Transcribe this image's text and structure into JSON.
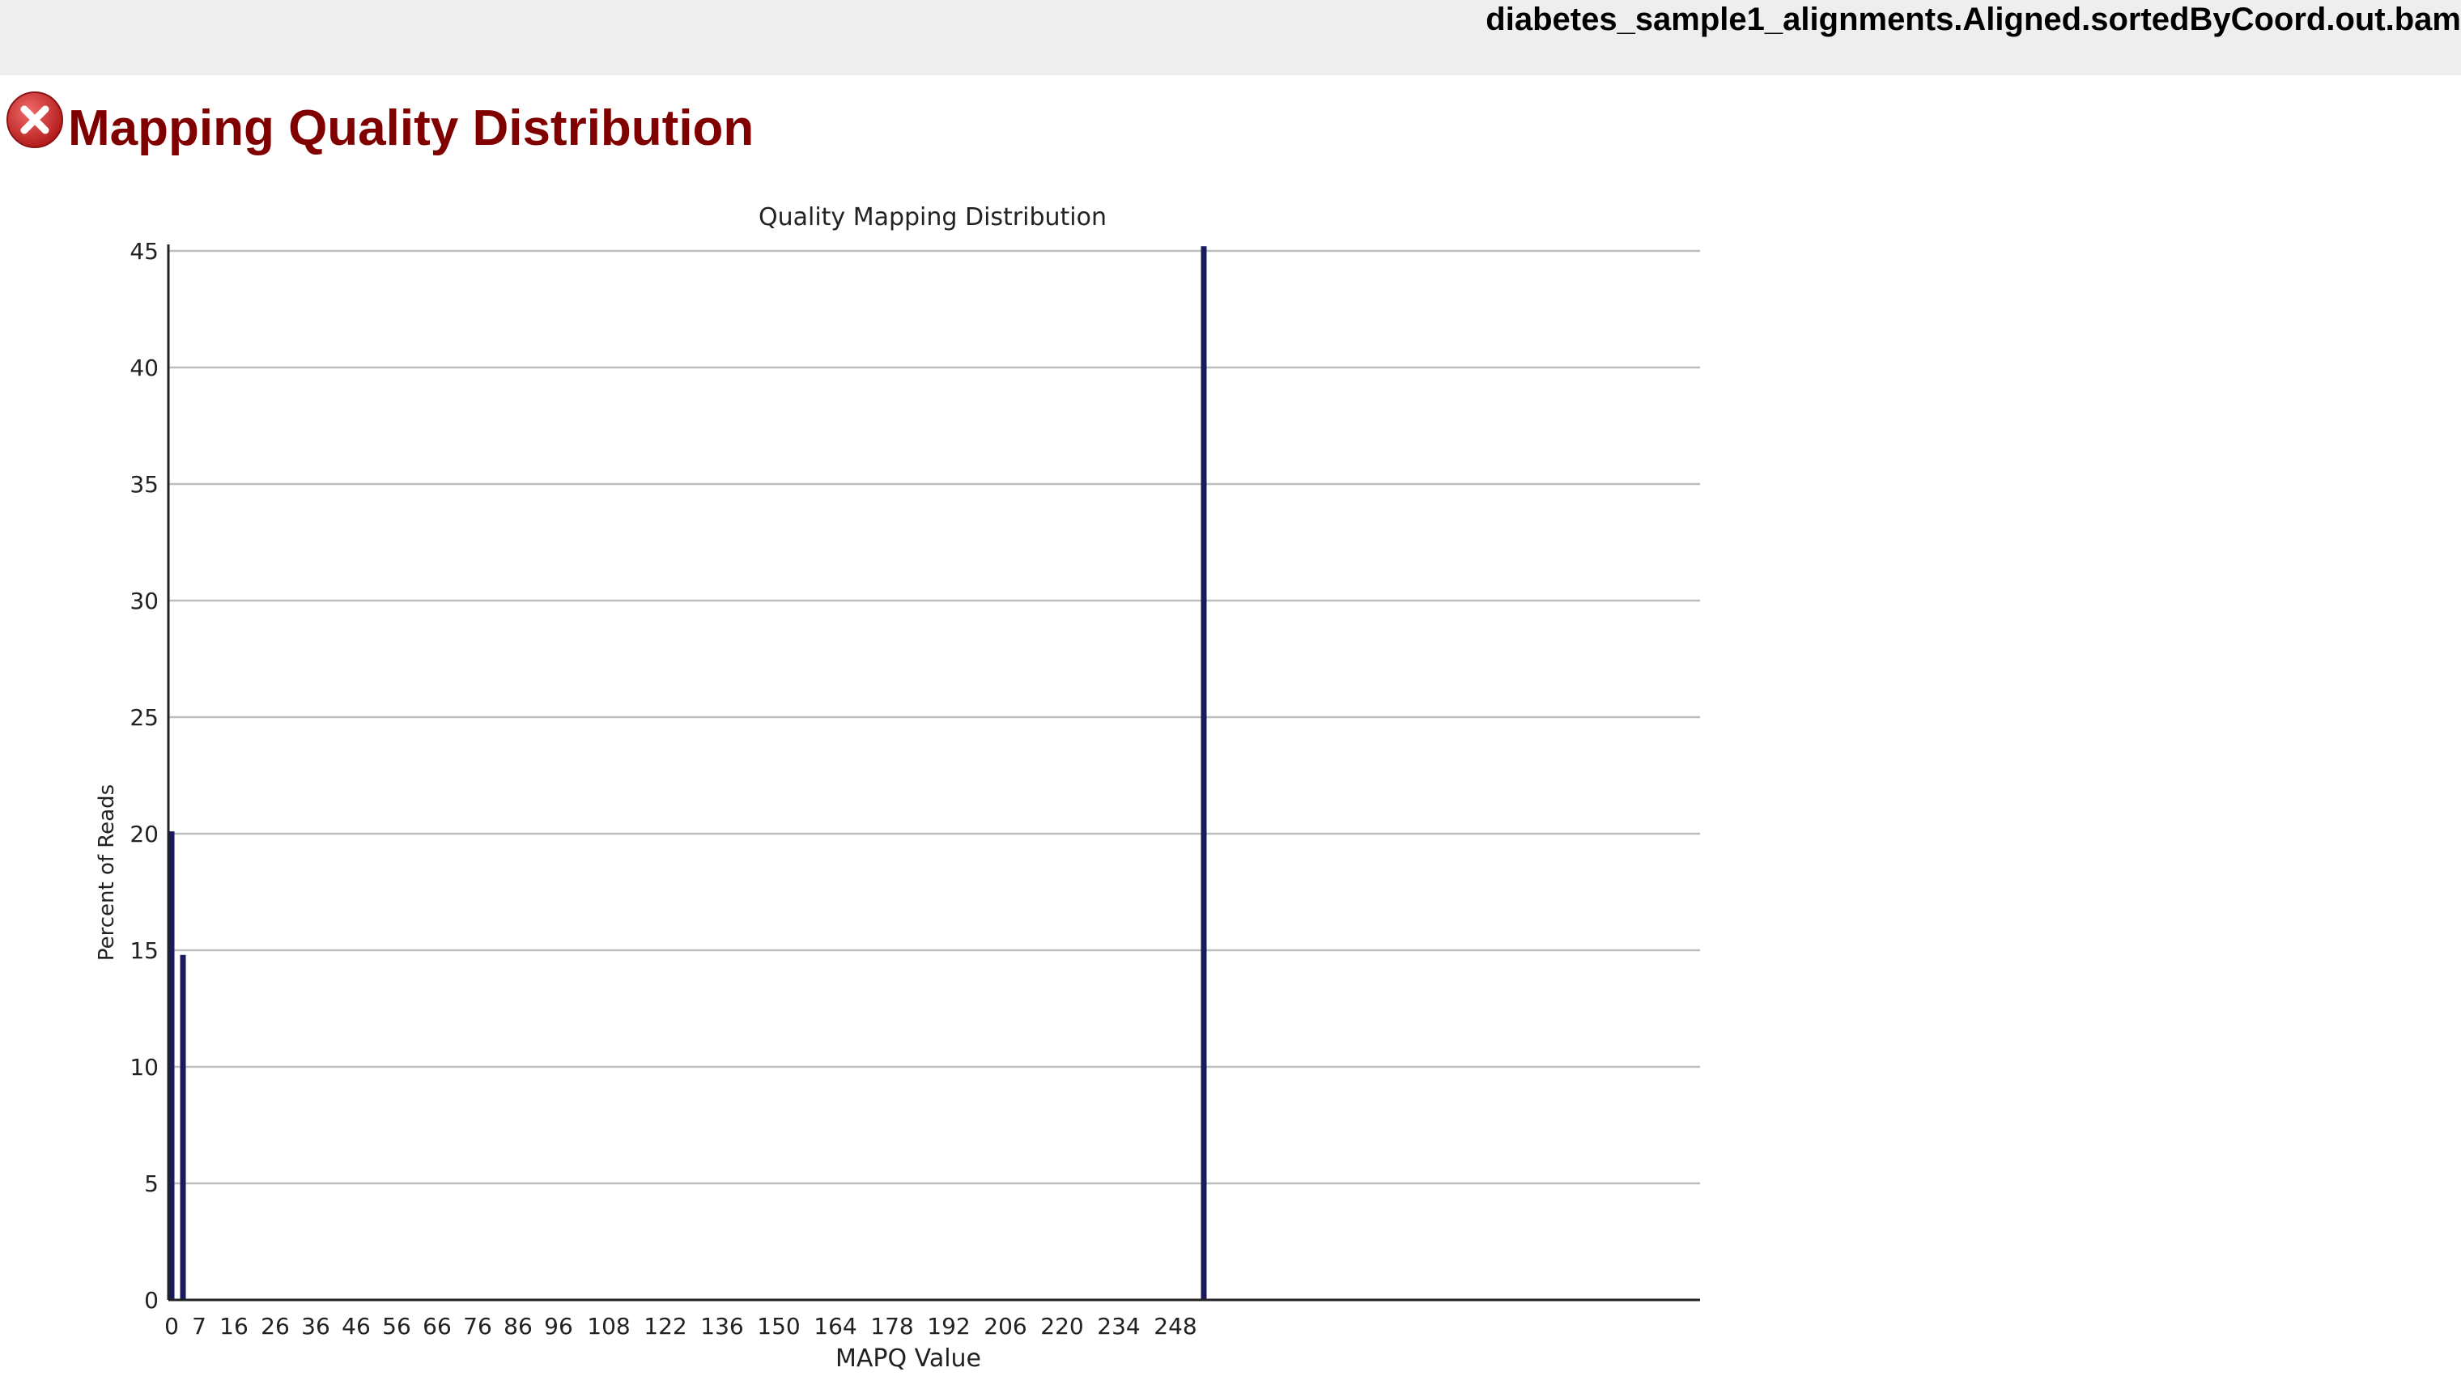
{
  "header": {
    "filename": "diabetes_sample1_alignments.Aligned.sortedByCoord.out.bam"
  },
  "module": {
    "title": "Mapping Quality Distribution",
    "status": "fail",
    "status_icon": "error-x-icon",
    "status_color": "#d62a2a"
  },
  "chart_data": {
    "type": "bar",
    "title": "Quality Mapping Distribution",
    "xlabel": "MAPQ Value",
    "ylabel": "Percent of Reads",
    "x_tick_labels": [
      "0",
      "7",
      "16",
      "26",
      "36",
      "46",
      "56",
      "66",
      "76",
      "86",
      "96",
      "108",
      "122",
      "136",
      "150",
      "164",
      "178",
      "192",
      "206",
      "220",
      "234",
      "248"
    ],
    "y_ticks": [
      0,
      5,
      10,
      15,
      20,
      25,
      30,
      35,
      40,
      45
    ],
    "ylim": [
      0,
      45
    ],
    "grid": true,
    "bar_color": "#1a1a5e",
    "bars": [
      {
        "x": 0,
        "value": 20.1
      },
      {
        "x": 1,
        "value": 14.8
      },
      {
        "x": 255,
        "value": 45.2
      }
    ]
  }
}
